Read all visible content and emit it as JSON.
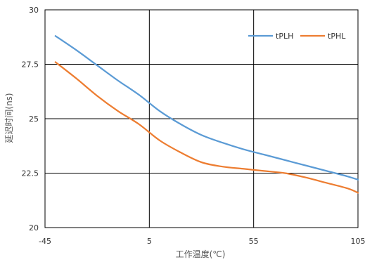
{
  "chart_data": {
    "type": "line",
    "xlabel": "工作温度(℃)",
    "ylabel": "延迟时间(ns)",
    "xlim": [
      -45,
      105
    ],
    "ylim": [
      20,
      30
    ],
    "x_ticks": [
      "-45",
      "5",
      "55",
      "105"
    ],
    "y_ticks": [
      "20",
      "22.5",
      "25",
      "27.5",
      "30"
    ],
    "grid": true,
    "legend_position": "top-right",
    "series": [
      {
        "name": "tPLH",
        "color": "#5b9bd5",
        "x": [
          -40,
          -30,
          -20,
          -10,
          0,
          10,
          20,
          30,
          40,
          50,
          60,
          70,
          80,
          90,
          100,
          105
        ],
        "y": [
          28.8,
          28.15,
          27.45,
          26.75,
          26.1,
          25.35,
          24.75,
          24.25,
          23.9,
          23.6,
          23.35,
          23.1,
          22.85,
          22.6,
          22.35,
          22.2
        ]
      },
      {
        "name": "tPHL",
        "color": "#ed7d31",
        "x": [
          -40,
          -30,
          -20,
          -10,
          0,
          10,
          20,
          30,
          40,
          50,
          60,
          70,
          80,
          90,
          100,
          105
        ],
        "y": [
          27.6,
          26.85,
          26.05,
          25.35,
          24.75,
          24.0,
          23.45,
          23.0,
          22.8,
          22.7,
          22.6,
          22.5,
          22.3,
          22.05,
          21.8,
          21.6
        ]
      }
    ]
  }
}
